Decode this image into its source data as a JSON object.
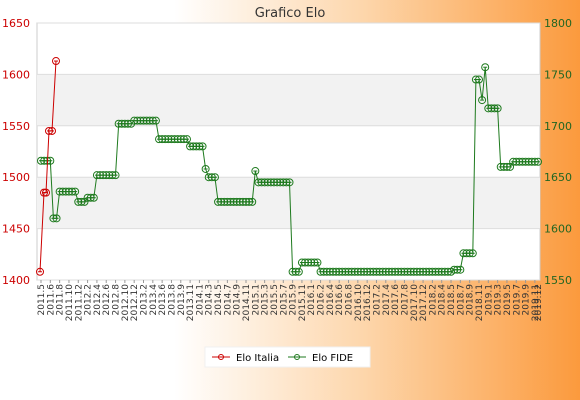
{
  "chart_data": {
    "type": "line",
    "title": "Grafico Elo",
    "legend_position": "bottom-center",
    "grid": true,
    "left_axis": {
      "ylim": [
        1400,
        1650
      ],
      "ticks": [
        1400,
        1450,
        1500,
        1550,
        1600,
        1650
      ]
    },
    "right_axis": {
      "ylim": [
        1550,
        1800
      ],
      "ticks": [
        1550,
        1600,
        1650,
        1700,
        1750,
        1800
      ]
    },
    "x_start_label": "2011.5",
    "x_end_label": "2019.12",
    "series": [
      {
        "name": "Elo Italia",
        "axis": "left",
        "color": "#cc0000",
        "values": [
          1408,
          1485,
          1485,
          1545,
          1545,
          1613
        ]
      },
      {
        "name": "Elo FIDE",
        "axis": "right",
        "color": "#1e7a1e",
        "values": [
          1666,
          1666,
          1666,
          1666,
          1610,
          1610,
          1636,
          1636,
          1636,
          1636,
          1636,
          1636,
          1626,
          1626,
          1626,
          1630,
          1630,
          1630,
          1652,
          1652,
          1652,
          1652,
          1652,
          1652,
          1652,
          1702,
          1702,
          1702,
          1702,
          1702,
          1705,
          1705,
          1705,
          1705,
          1705,
          1705,
          1705,
          1705,
          1687,
          1687,
          1687,
          1687,
          1687,
          1687,
          1687,
          1687,
          1687,
          1687,
          1680,
          1680,
          1680,
          1680,
          1680,
          1658,
          1650,
          1650,
          1650,
          1626,
          1626,
          1626,
          1626,
          1626,
          1626,
          1626,
          1626,
          1626,
          1626,
          1626,
          1626,
          1656,
          1645,
          1645,
          1645,
          1645,
          1645,
          1645,
          1645,
          1645,
          1645,
          1645,
          1645,
          1558,
          1558,
          1558,
          1567,
          1567,
          1567,
          1567,
          1567,
          1567,
          1558,
          1558,
          1558,
          1558,
          1558,
          1558,
          1558,
          1558,
          1558,
          1558,
          1558,
          1558,
          1558,
          1558,
          1558,
          1558,
          1558,
          1558,
          1558,
          1558,
          1558,
          1558,
          1558,
          1558,
          1558,
          1558,
          1558,
          1558,
          1558,
          1558,
          1558,
          1558,
          1558,
          1558,
          1558,
          1558,
          1558,
          1558,
          1558,
          1558,
          1558,
          1558,
          1558,
          1560,
          1560,
          1560,
          1576,
          1576,
          1576,
          1576,
          1745,
          1745,
          1725,
          1757,
          1717,
          1717,
          1717,
          1717,
          1660,
          1660,
          1660,
          1660,
          1665,
          1665,
          1665,
          1665,
          1665,
          1665,
          1665,
          1665,
          1665
        ]
      }
    ]
  }
}
